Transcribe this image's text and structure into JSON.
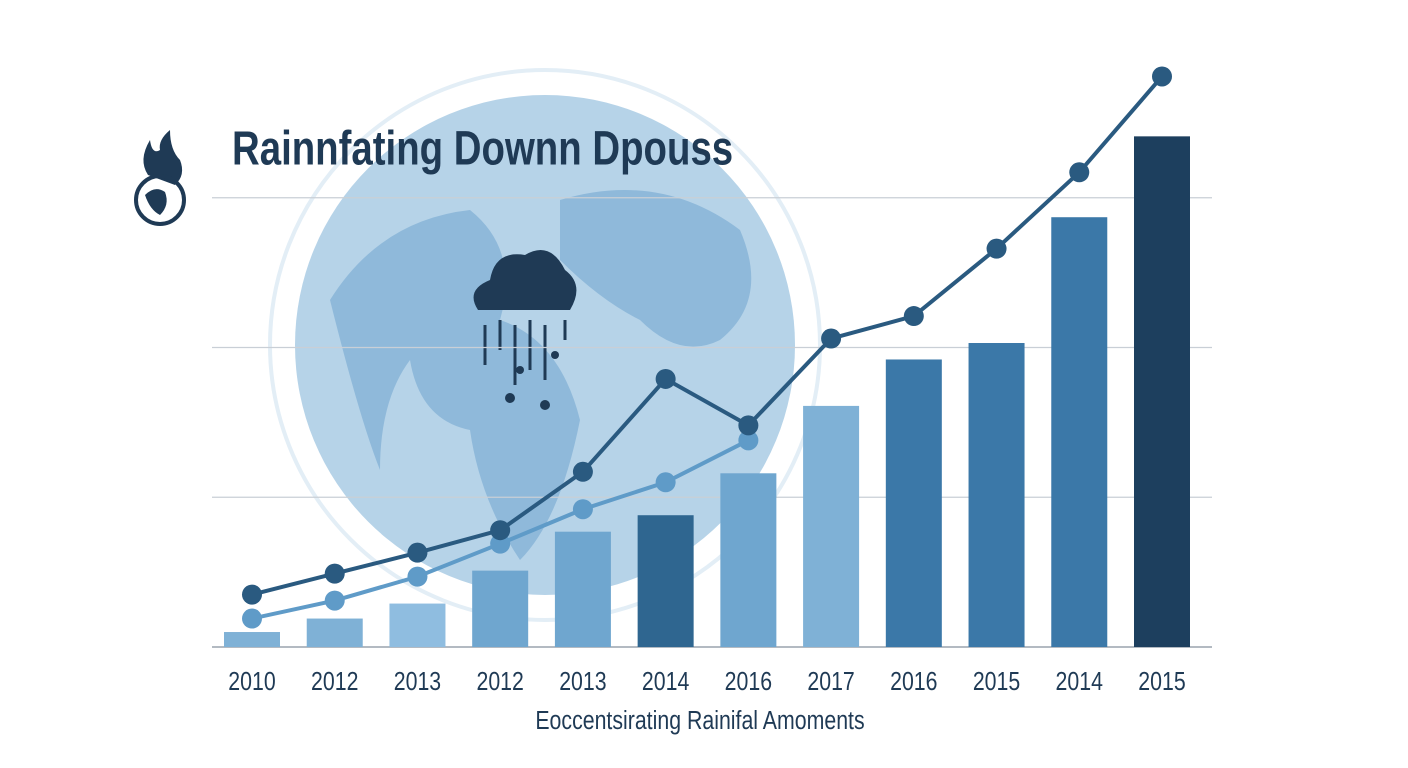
{
  "chart_data": {
    "type": "bar",
    "title": "Rainnfating Downn Dpouss",
    "x_label": "Eoccentsirating Rainifal Amoments",
    "categories": [
      "2010",
      "2012",
      "2013",
      "2012",
      "2013",
      "2014",
      "2016",
      "2017",
      "2016",
      "2015",
      "2014",
      "2015"
    ],
    "values": [
      0.1,
      0.19,
      0.29,
      0.51,
      0.77,
      0.88,
      1.16,
      1.61,
      1.92,
      2.03,
      2.87,
      3.41
    ],
    "colors": [
      "#7fb1d6",
      "#7fb1d6",
      "#8fbde0",
      "#6fa6cf",
      "#6fa6cf",
      "#2f6690",
      "#6fa6cf",
      "#7fb1d6",
      "#3b78a8",
      "#3b78a8",
      "#3b78a8",
      "#1d3f5e"
    ],
    "series": [
      {
        "color": "#2a5a80",
        "values": [
          0.35,
          0.49,
          0.63,
          0.78,
          1.17,
          1.79,
          1.48,
          2.06,
          2.21,
          2.66,
          3.17,
          3.81
        ]
      },
      {
        "color": "#5f9bc8",
        "values": [
          0.19,
          0.31,
          0.47,
          0.69,
          0.92,
          1.1,
          1.38,
          null,
          null,
          null,
          null,
          null
        ]
      }
    ],
    "ylim": [
      0,
      4
    ],
    "yticks": [
      1,
      2,
      3
    ],
    "grid": true
  }
}
